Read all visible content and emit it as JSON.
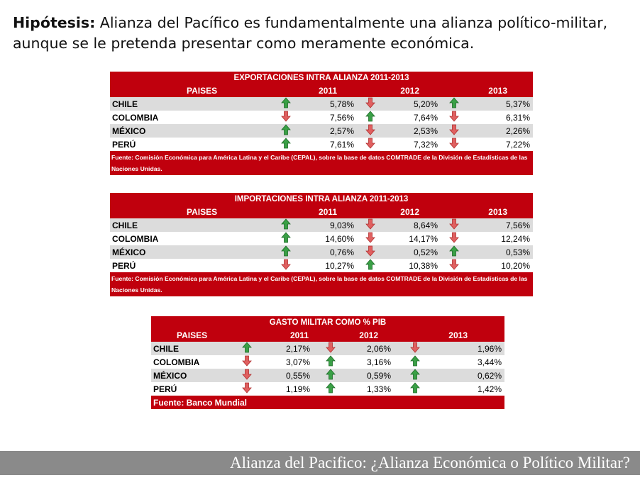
{
  "hypothesis": {
    "label": "Hipótesis:",
    "text": " Alianza del Pacífico es fundamentalmente una alianza político-militar, aunque se le pretenda presentar como meramente económica."
  },
  "colors": {
    "up": "#3aa046",
    "down": "#e06060",
    "header": "#c0000d",
    "stripe": "#dcdcdc"
  },
  "tables": [
    {
      "title": "EXPORTACIONES INTRA ALIANZA 2011-2013",
      "header": [
        "PAISES",
        "2011",
        "2012",
        "2013"
      ],
      "rows": [
        {
          "country": "CHILE",
          "cells": [
            {
              "trend": "up",
              "value": "5,78%"
            },
            {
              "trend": "down",
              "value": "5,20%"
            },
            {
              "trend": "up",
              "value": "5,37%"
            }
          ]
        },
        {
          "country": "COLOMBIA",
          "cells": [
            {
              "trend": "down",
              "value": "7,56%"
            },
            {
              "trend": "up",
              "value": "7,64%"
            },
            {
              "trend": "down",
              "value": "6,31%"
            }
          ]
        },
        {
          "country": "MÉXICO",
          "cells": [
            {
              "trend": "up",
              "value": "2,57%"
            },
            {
              "trend": "down",
              "value": "2,53%"
            },
            {
              "trend": "down",
              "value": "2,26%"
            }
          ]
        },
        {
          "country": "PERÚ",
          "cells": [
            {
              "trend": "up",
              "value": "7,61%"
            },
            {
              "trend": "down",
              "value": "7,32%"
            },
            {
              "trend": "down",
              "value": "7,22%"
            }
          ]
        }
      ],
      "source": "Fuente: Comisión Económica para América Latina y el Caribe (CEPAL), sobre la base de datos COMTRADE de la División de Estadísticas de las Naciones Unidas."
    },
    {
      "title": "IMPORTACIONES INTRA ALIANZA 2011-2013",
      "header": [
        "PAISES",
        "2011",
        "2012",
        "2013"
      ],
      "rows": [
        {
          "country": "CHILE",
          "cells": [
            {
              "trend": "up",
              "value": "9,03%"
            },
            {
              "trend": "down",
              "value": "8,64%"
            },
            {
              "trend": "down",
              "value": "7,56%"
            }
          ]
        },
        {
          "country": "COLOMBIA",
          "cells": [
            {
              "trend": "up",
              "value": "14,60%"
            },
            {
              "trend": "down",
              "value": "14,17%"
            },
            {
              "trend": "down",
              "value": "12,24%"
            }
          ]
        },
        {
          "country": "MÉXICO",
          "cells": [
            {
              "trend": "up",
              "value": "0,76%"
            },
            {
              "trend": "down",
              "value": "0,52%"
            },
            {
              "trend": "up",
              "value": "0,53%"
            }
          ]
        },
        {
          "country": "PERÚ",
          "cells": [
            {
              "trend": "down",
              "value": "10,27%"
            },
            {
              "trend": "up",
              "value": "10,38%"
            },
            {
              "trend": "down",
              "value": "10,20%"
            }
          ]
        }
      ],
      "source": "Fuente: Comisión Económica para América Latina y el Caribe (CEPAL), sobre la base de datos COMTRADE de la División de Estadísticas de las Naciones Unidas."
    },
    {
      "title": "GASTO MILITAR COMO % PIB",
      "header": [
        "PAISES",
        "2011",
        "2012",
        "2013"
      ],
      "rows": [
        {
          "country": "CHILE",
          "cells": [
            {
              "trend": "up",
              "value": "2,17%"
            },
            {
              "trend": "down",
              "value": "2,06%"
            },
            {
              "trend": "down",
              "value": "1,96%"
            }
          ]
        },
        {
          "country": "COLOMBIA",
          "cells": [
            {
              "trend": "down",
              "value": "3,07%"
            },
            {
              "trend": "up",
              "value": "3,16%"
            },
            {
              "trend": "up",
              "value": "3,44%"
            }
          ]
        },
        {
          "country": "MÉXICO",
          "cells": [
            {
              "trend": "down",
              "value": "0,55%"
            },
            {
              "trend": "up",
              "value": "0,59%"
            },
            {
              "trend": "up",
              "value": "0,62%"
            }
          ]
        },
        {
          "country": "PERÚ",
          "cells": [
            {
              "trend": "down",
              "value": "1,19%"
            },
            {
              "trend": "up",
              "value": "1,33%"
            },
            {
              "trend": "up",
              "value": "1,42%"
            }
          ]
        }
      ],
      "source": "Fuente: Banco Mundial"
    }
  ],
  "footer": {
    "text": "Alianza del Pacifico: ¿Alianza Económica o Político Militar?"
  }
}
